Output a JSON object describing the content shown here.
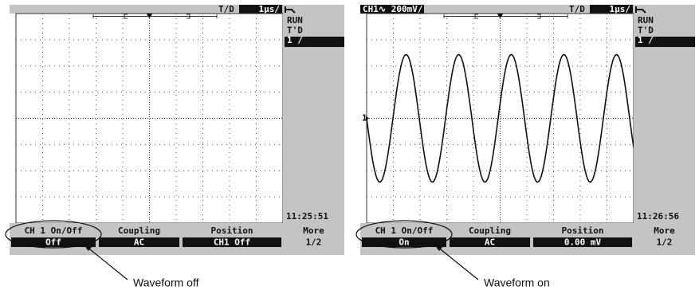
{
  "screens": [
    {
      "timebase_label": "T/D",
      "timebase": "1μs/",
      "status": [
        "RUN",
        "T'D",
        "1 /"
      ],
      "time": "11:25:51",
      "softkeys": [
        {
          "label": "CH 1 On/Off",
          "value": "Off"
        },
        {
          "label": "Coupling",
          "value": "AC"
        },
        {
          "label": "Position",
          "value": "CH1 Off"
        },
        {
          "label": "More",
          "value": "1/2"
        }
      ],
      "caption": "Waveform off"
    },
    {
      "channel": "CH1∿ 200mV/",
      "marker": "1",
      "timebase_label": "T/D",
      "timebase": "1μs/",
      "status": [
        "RUN",
        "T'D",
        "1 /"
      ],
      "time": "11:26:56",
      "softkeys": [
        {
          "label": "CH 1 On/Off",
          "value": "On"
        },
        {
          "label": "Coupling",
          "value": "AC"
        },
        {
          "label": "Position",
          "value": "0.00 mV"
        },
        {
          "label": "More",
          "value": "1/2"
        }
      ],
      "caption": "Waveform on"
    }
  ]
}
